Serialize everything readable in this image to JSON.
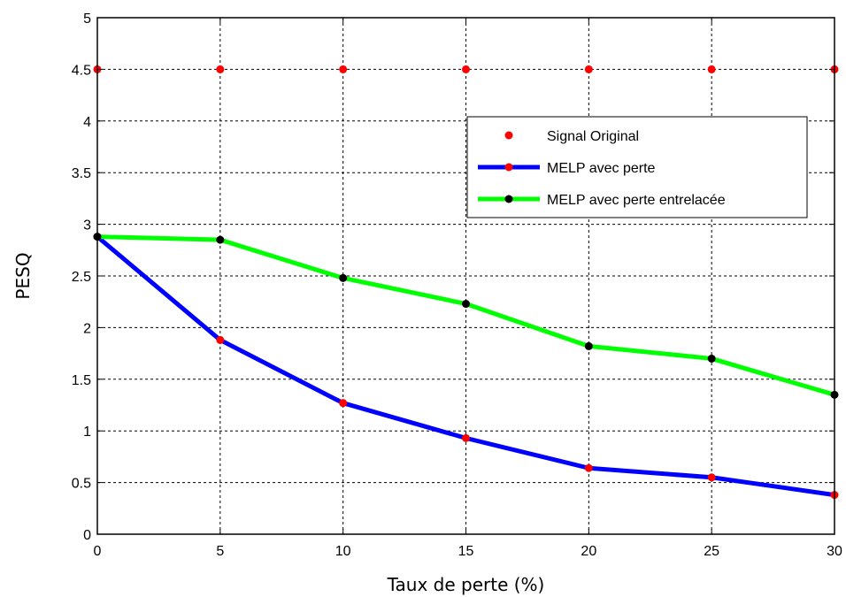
{
  "chart_data": {
    "type": "line",
    "title": "",
    "xlabel": "Taux de perte (%)",
    "ylabel": "PESQ",
    "xlim": [
      0,
      30
    ],
    "ylim": [
      0,
      5
    ],
    "x_ticks": [
      "0",
      "5",
      "10",
      "15",
      "20",
      "25",
      "30"
    ],
    "y_ticks": [
      "0",
      "0.5",
      "1",
      "1.5",
      "2",
      "2.5",
      "3",
      "3.5",
      "4",
      "4.5",
      "5"
    ],
    "grid": true,
    "legend_position": "top-right",
    "x": [
      0,
      5,
      10,
      15,
      20,
      25,
      30
    ],
    "series": [
      {
        "name": "Signal Original",
        "style": "markers",
        "line_color": "",
        "marker_color": "#ff0000",
        "values": [
          4.5,
          4.5,
          4.5,
          4.5,
          4.5,
          4.5,
          4.5
        ]
      },
      {
        "name": "MELP avec perte",
        "style": "line+markers",
        "line_color": "#0000ff",
        "marker_color": "#ff0000",
        "values": [
          2.88,
          1.88,
          1.27,
          0.93,
          0.64,
          0.55,
          0.38
        ]
      },
      {
        "name": "MELP avec perte entrelacée",
        "style": "line+markers",
        "line_color": "#00ff00",
        "marker_color": "#000000",
        "values": [
          2.88,
          2.85,
          2.48,
          2.23,
          1.82,
          1.7,
          1.35
        ]
      }
    ]
  }
}
